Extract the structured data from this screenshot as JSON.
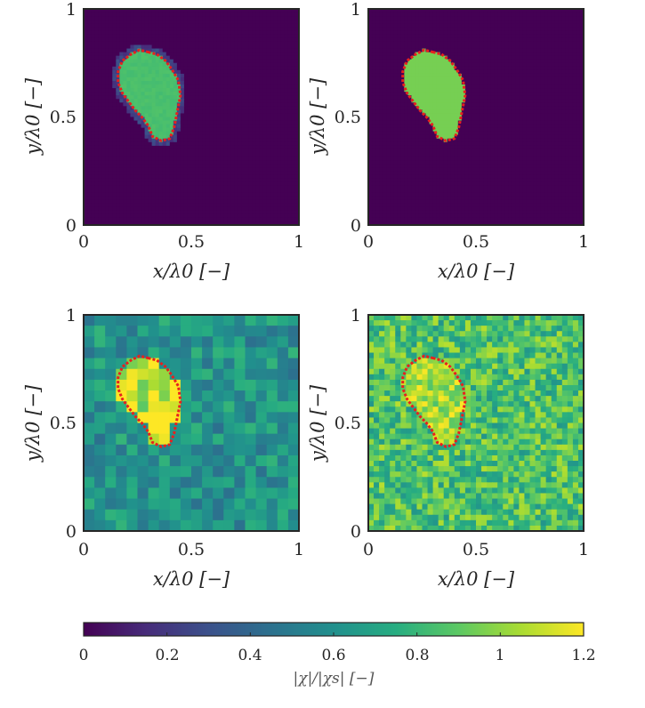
{
  "chart_data": [
    {
      "type": "heatmap",
      "panel": "top-left",
      "grid": [
        60,
        60
      ],
      "xlabel": "x/λ0 [−]",
      "ylabel": "y/λ0 [−]",
      "xlim": [
        0,
        1
      ],
      "ylim": [
        0,
        1
      ],
      "xticks": [
        "0",
        "0.5",
        "1"
      ],
      "yticks": [
        "0",
        "0.5",
        "1"
      ],
      "background_value": 0.0,
      "inclusion_value": 0.85,
      "boundary_style": "red dotted"
    },
    {
      "type": "heatmap",
      "panel": "top-right",
      "grid": [
        60,
        60
      ],
      "xlabel": "x/λ0 [−]",
      "ylabel": "y/λ0 [−]",
      "xlim": [
        0,
        1
      ],
      "ylim": [
        0,
        1
      ],
      "xticks": [
        "0",
        "0.5",
        "1"
      ],
      "yticks": [
        "0",
        "0.5",
        "1"
      ],
      "background_value": 0.0,
      "inclusion_value": 0.95,
      "boundary_style": "red dotted"
    },
    {
      "type": "heatmap",
      "panel": "bottom-left",
      "grid": [
        20,
        20
      ],
      "xlabel": "x/λ0 [−]",
      "ylabel": "y/λ0 [−]",
      "xlim": [
        0,
        1
      ],
      "ylim": [
        0,
        1
      ],
      "xticks": [
        "0",
        "0.5",
        "1"
      ],
      "yticks": [
        "0",
        "0.5",
        "1"
      ],
      "background_value": 0.62,
      "inclusion_value": 1.0,
      "boundary_style": "red dotted"
    },
    {
      "type": "heatmap",
      "panel": "bottom-right",
      "grid": [
        40,
        40
      ],
      "xlabel": "x/λ0 [−]",
      "ylabel": "y/λ0 [−]",
      "xlim": [
        0,
        1
      ],
      "ylim": [
        0,
        1
      ],
      "xticks": [
        "0",
        "0.5",
        "1"
      ],
      "yticks": [
        "0",
        "0.5",
        "1"
      ],
      "background_value": 0.85,
      "inclusion_value": 1.0,
      "boundary_style": "red dotted"
    }
  ],
  "boundary_x": [
    0.3,
    0.34,
    0.38,
    0.41,
    0.44,
    0.45,
    0.44,
    0.43,
    0.42,
    0.4,
    0.36,
    0.32,
    0.3,
    0.27,
    0.24,
    0.21,
    0.18,
    0.16,
    0.16,
    0.18,
    0.22,
    0.26,
    0.3
  ],
  "boundary_y": [
    0.8,
    0.79,
    0.76,
    0.72,
    0.67,
    0.6,
    0.55,
    0.5,
    0.45,
    0.4,
    0.39,
    0.41,
    0.46,
    0.5,
    0.53,
    0.57,
    0.61,
    0.66,
    0.71,
    0.76,
    0.79,
    0.81,
    0.8
  ],
  "colorbar": {
    "label": "|χ|/|χs| [−]",
    "range": [
      0,
      1.2
    ],
    "ticks": [
      "0",
      "0.2",
      "0.4",
      "0.6",
      "0.8",
      "1",
      "1.2"
    ],
    "colormap": [
      "#440154",
      "#472c7a",
      "#3b518b",
      "#2c718e",
      "#21908d",
      "#27ad81",
      "#5cc863",
      "#aadc32",
      "#fde725"
    ]
  }
}
